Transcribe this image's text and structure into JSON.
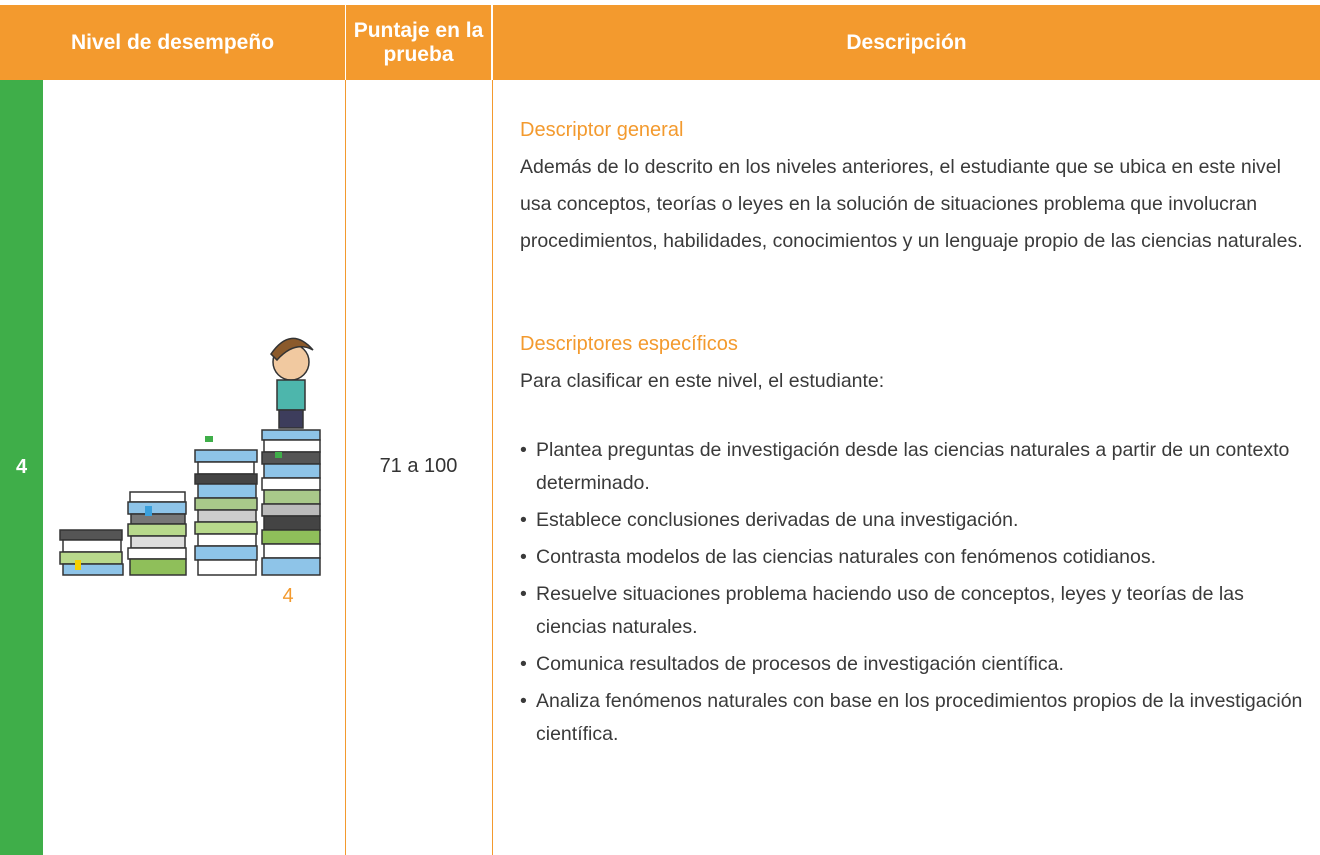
{
  "table": {
    "headers": [
      "Nivel de desempeño",
      "Puntaje en la prueba",
      "Descripción"
    ],
    "row": {
      "level": "4",
      "illustration_label": "4",
      "score": "71 a 100",
      "description": {
        "general_heading": "Descriptor general",
        "general_text": "Además de lo descrito en los niveles anteriores, el estudiante que se ubica en este nivel usa conceptos, teorías o leyes en la solución de situaciones problema que involucran procedimientos, habilidades, conocimientos y un lenguaje propio de las ciencias naturales.",
        "specific_heading": "Descriptores específicos",
        "specific_intro": "Para clasificar en este nivel, el estudiante:",
        "bullets": [
          "Plantea preguntas de investigación desde las ciencias naturales a partir de un contexto determinado.",
          "Establece conclusiones derivadas de una investigación.",
          "Contrasta modelos de las ciencias naturales con fenómenos cotidianos.",
          "Resuelve situaciones problema haciendo uso de conceptos, leyes y teorías de las ciencias naturales.",
          "Comunica resultados de procesos de investigación científica.",
          "Analiza fenómenos naturales con base en los procedimientos propios de la investigación científica."
        ]
      }
    }
  }
}
